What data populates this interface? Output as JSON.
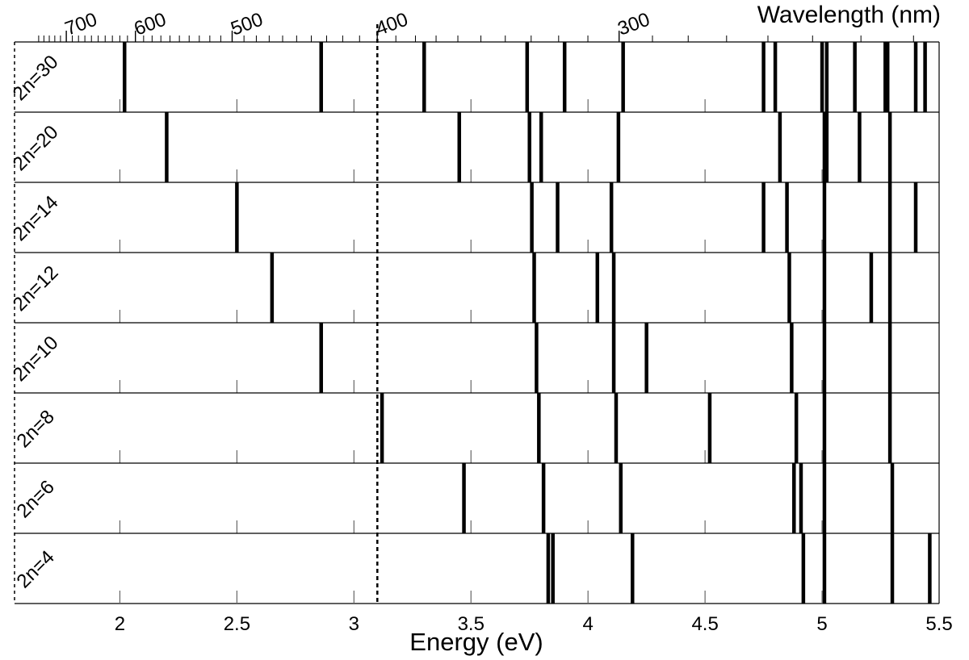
{
  "chart_data": {
    "type": "spectral-lines",
    "x_axis": {
      "label": "Energy (eV)",
      "range": [
        1.55,
        5.5
      ],
      "ticks": [
        2,
        2.5,
        3,
        3.5,
        4,
        4.5,
        5,
        5.5
      ],
      "tick_labels": [
        "2",
        "2.5",
        "3",
        "3.5",
        "4",
        "4.5",
        "5",
        "5.5"
      ]
    },
    "top_axis": {
      "label": "Wavelength (nm)",
      "labeled_ticks_nm": [
        700,
        600,
        500,
        400,
        300
      ],
      "tick_labels": [
        "700",
        "600",
        "500",
        "400",
        "300"
      ]
    },
    "marker_line_energy": 3.1,
    "rows": [
      {
        "label": "2n=30",
        "lines": [
          2.02,
          2.86,
          3.3,
          3.74,
          3.9,
          4.15,
          4.75,
          4.8,
          5.0,
          5.02,
          5.14,
          5.27,
          5.28,
          5.4,
          5.44
        ]
      },
      {
        "label": "2n=20",
        "lines": [
          2.2,
          3.45,
          3.75,
          3.8,
          4.13,
          4.82,
          5.01,
          5.02,
          5.16,
          5.29
        ]
      },
      {
        "label": "2n=14",
        "lines": [
          2.5,
          3.76,
          3.87,
          4.1,
          4.75,
          4.85,
          5.01,
          5.29,
          5.4
        ]
      },
      {
        "label": "2n=12",
        "lines": [
          2.65,
          3.77,
          4.04,
          4.11,
          4.86,
          5.01,
          5.21,
          5.29
        ]
      },
      {
        "label": "2n=10",
        "lines": [
          2.86,
          3.78,
          4.11,
          4.25,
          4.87,
          5.01,
          5.29
        ]
      },
      {
        "label": "2n=8",
        "lines": [
          3.12,
          3.79,
          4.12,
          4.52,
          4.89,
          5.01,
          5.29
        ]
      },
      {
        "label": "2n=6",
        "lines": [
          3.47,
          3.81,
          4.14,
          4.88,
          4.91,
          5.01,
          5.3
        ]
      },
      {
        "label": "2n=4",
        "lines": [
          3.83,
          3.85,
          4.19,
          4.92,
          5.01,
          5.3,
          5.46
        ]
      }
    ]
  }
}
